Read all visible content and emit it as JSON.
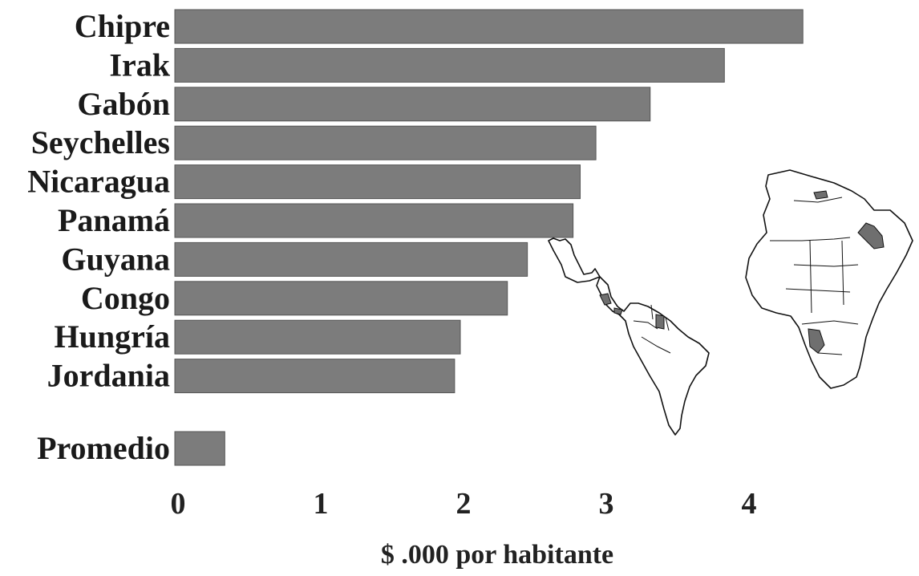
{
  "chart_data": {
    "type": "bar",
    "orientation": "horizontal",
    "categories": [
      "Chipre",
      "Irak",
      "Gabón",
      "Seychelles",
      "Nicaragua",
      "Panamá",
      "Guyana",
      "Congo",
      "Hungría",
      "Jordania"
    ],
    "values": [
      4.4,
      3.85,
      3.33,
      2.95,
      2.84,
      2.79,
      2.47,
      2.33,
      2.0,
      1.96
    ],
    "average": {
      "label": "Promedio",
      "value": 0.35
    },
    "xlabel": "$ .000 por habitante",
    "xlim": [
      0,
      4.6
    ],
    "xticks": [
      "0",
      "1",
      "2",
      "3",
      "4"
    ],
    "grid": false,
    "bar_color": "#7c7c7c",
    "highlight_color": "#6f6f6f"
  }
}
